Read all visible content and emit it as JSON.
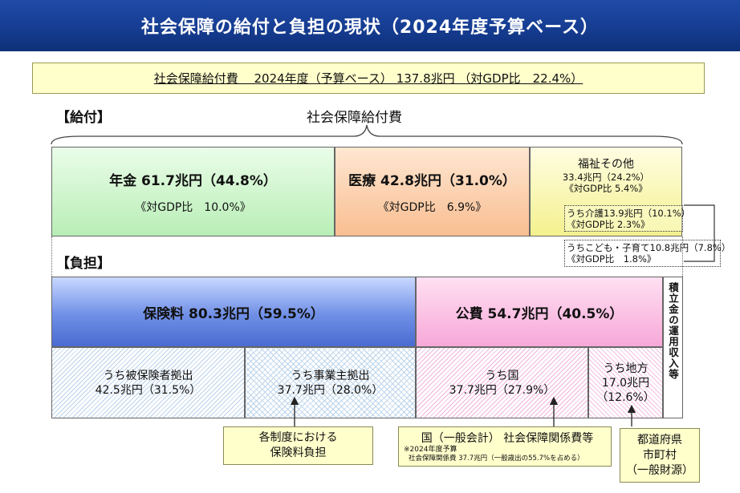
{
  "title": "社会保障の給付と負担の現状（2024年度予算ベース）",
  "summary": "社会保障給付費　 2024年度（予算ベース） 137.8兆円 （対GDP比　22.4%）",
  "benefits": {
    "section_label": "【給付】",
    "total_label": "社会保障給付費",
    "pension": {
      "main": "年金  61.7兆円（44.8%）",
      "gdp": "《対GDP比　10.0%》",
      "value_trillion_yen": 61.7,
      "share_pct": 44.8,
      "gdp_pct": 10.0
    },
    "medical": {
      "main": "医療  42.8兆円（31.0%）",
      "gdp": "《対GDP比　6.9%》",
      "value_trillion_yen": 42.8,
      "share_pct": 31.0,
      "gdp_pct": 6.9
    },
    "welfare": {
      "title": "福祉その他",
      "amount": "33.4兆円（24.2%）",
      "gdp": "《対GDP比 5.4%》",
      "care_line1": "うち介護13.9兆円（10.1%）",
      "care_line2": "《対GDP比 2.3%》",
      "child_line1": "うちこども・子育て10.8兆円（7.8%）",
      "child_line2": "《対GDP比　1.8%》",
      "value_trillion_yen": 33.4,
      "share_pct": 24.2,
      "gdp_pct": 5.4
    }
  },
  "burden": {
    "section_label": "【負担】",
    "insurance": {
      "main": "保険料  80.3兆円（59.5%）",
      "value_trillion_yen": 80.3,
      "share_pct": 59.5
    },
    "public": {
      "main": "公費  54.7兆円（40.5%）",
      "value_trillion_yen": 54.7,
      "share_pct": 40.5
    },
    "reserve_label": "積立金の運用収入等",
    "insured": {
      "line1": "うち被保険者拠出",
      "line2": "42.5兆円（31.5%）"
    },
    "employer": {
      "line1": "うち事業主拠出",
      "line2": "37.7兆円（28.0%）"
    },
    "national": {
      "line1": "うち国",
      "line2": "37.7兆円（27.9%）"
    },
    "local": {
      "line1": "うち地方",
      "line2": "17.0兆円",
      "line3": "（12.6%）"
    }
  },
  "notes": {
    "insurance_note_line1": "各制度における",
    "insurance_note_line2": "保険料負担",
    "national_note_title": "国（一般会計）  社会保障関係費等",
    "national_note_sub1": "※2024年度予算",
    "national_note_sub2": "社会保障関係費 37.7兆円（一般歳出の55.7%を占める）",
    "local_note_line1": "都道府県",
    "local_note_line2": "市町村",
    "local_note_line3": "（一般財源）"
  },
  "colors": {
    "header": "#163d92",
    "pension": "#b9eeb6",
    "medical": "#f8be91",
    "welfare": "#f4f18e",
    "insurance": "#6f8fe6",
    "public": "#f7a8d8",
    "note": "#ffffcc"
  }
}
